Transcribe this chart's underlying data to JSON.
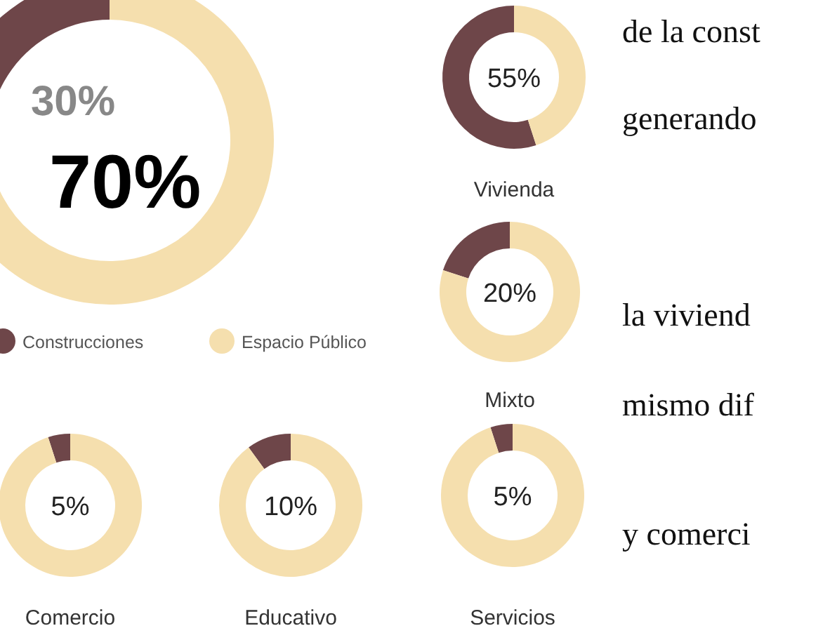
{
  "chart_data": [
    {
      "type": "donut",
      "categories": [
        "Construcciones",
        "Espacio Público"
      ],
      "values": [
        30,
        70
      ],
      "colors": [
        "#6e4649",
        "#f5dfae"
      ],
      "value_labels": [
        "30%",
        "70%"
      ],
      "legend": "bottom"
    },
    {
      "type": "donut",
      "title": "Vivienda",
      "categories": [
        null,
        null
      ],
      "values": [
        55,
        45
      ],
      "colors": [
        "#6e4649",
        "#f5dfae"
      ],
      "annotations": [
        "55%"
      ]
    },
    {
      "type": "donut",
      "title": "Mixto",
      "categories": [
        null,
        null
      ],
      "values": [
        20,
        80
      ],
      "colors": [
        "#6e4649",
        "#f5dfae"
      ],
      "annotations": [
        "20%"
      ]
    },
    {
      "type": "donut",
      "title": "Comercio",
      "categories": [
        null,
        null
      ],
      "values": [
        5,
        95
      ],
      "colors": [
        "#6e4649",
        "#f5dfae"
      ],
      "annotations": [
        "5%"
      ]
    },
    {
      "type": "donut",
      "title": "Educativo",
      "categories": [
        null,
        null
      ],
      "values": [
        10,
        90
      ],
      "colors": [
        "#6e4649",
        "#f5dfae"
      ],
      "annotations": [
        "10%"
      ]
    },
    {
      "type": "donut",
      "title": "Servicios",
      "categories": [
        null,
        null
      ],
      "values": [
        5,
        95
      ],
      "colors": [
        "#6e4649",
        "#f5dfae"
      ],
      "annotations": [
        "5%"
      ]
    },
    {
      "type": "other",
      "annotations": [
        "de la const",
        "generando",
        "la viviend",
        "mismo dif",
        "y comerci"
      ]
    }
  ]
}
